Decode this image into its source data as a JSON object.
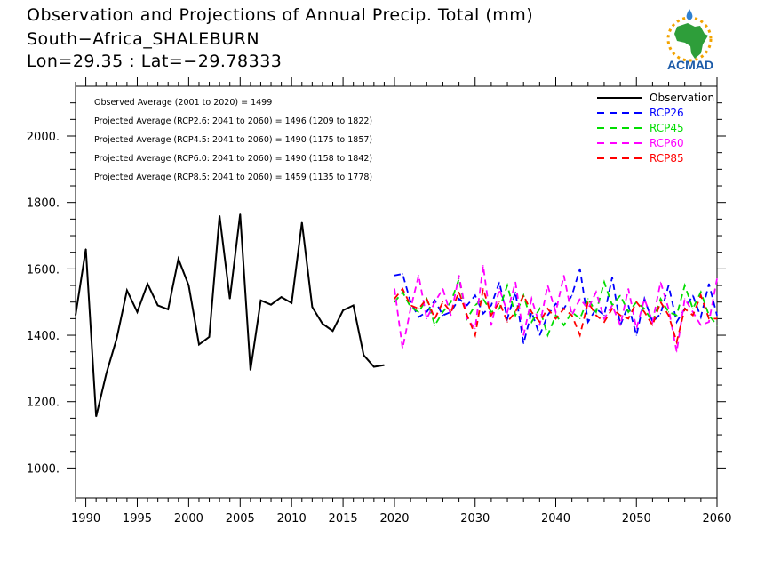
{
  "header": {
    "line1": "Observation and Projections of Annual Precip. Total (mm)",
    "line2": "South−Africa_SHALEBURN",
    "line3": "Lon=29.35 : Lat=−29.78333"
  },
  "logo": {
    "text": "ACMAD",
    "icon": "africa-map-logo"
  },
  "stats": [
    "Observed Average (2001 to 2020) = 1499",
    "Projected Average (RCP2.6: 2041 to 2060) = 1496 (1209 to 1822)",
    "Projected Average (RCP4.5: 2041 to 2060) = 1490 (1175 to 1857)",
    "Projected Average (RCP6.0: 2041 to 2060) = 1490 (1158 to 1842)",
    "Projected Average (RCP8.5: 2041 to 2060) = 1459 (1135 to 1778)"
  ],
  "chart_data": {
    "type": "line",
    "xlim": [
      1989,
      2060
    ],
    "ylim": [
      910,
      2150
    ],
    "x_ticks": [
      {
        "v": 1990,
        "label": "1990"
      },
      {
        "v": 1995,
        "label": "1995"
      },
      {
        "v": 2000,
        "label": "2000"
      },
      {
        "v": 2005,
        "label": "2005"
      },
      {
        "v": 2010,
        "label": "2010"
      },
      {
        "v": 2015,
        "label": "2015"
      },
      {
        "v": 2020,
        "label": "2020"
      },
      {
        "v": 2030,
        "label": "2030"
      },
      {
        "v": 2040,
        "label": "2040"
      },
      {
        "v": 2050,
        "label": "2050"
      },
      {
        "v": 2060,
        "label": "2060"
      }
    ],
    "y_ticks": [
      {
        "v": 1000,
        "label": "1000."
      },
      {
        "v": 1200,
        "label": "1200."
      },
      {
        "v": 1400,
        "label": "1400."
      },
      {
        "v": 1600,
        "label": "1600."
      },
      {
        "v": 1800,
        "label": "1800."
      },
      {
        "v": 2000,
        "label": "2000."
      }
    ],
    "legend_position": "top-right",
    "series": [
      {
        "name": "Observation",
        "color": "#000000",
        "dashed": false,
        "x": [
          1989,
          1990,
          1991,
          1992,
          1993,
          1994,
          1995,
          1996,
          1997,
          1998,
          1999,
          2000,
          2001,
          2002,
          2003,
          2004,
          2005,
          2006,
          2007,
          2008,
          2009,
          2010,
          2011,
          2012,
          2013,
          2014,
          2015,
          2016,
          2017,
          2018,
          2019
        ],
        "y": [
          1460,
          1660,
          1155,
          1285,
          1390,
          1535,
          1470,
          1555,
          1490,
          1478,
          1630,
          1550,
          1372,
          1395,
          1760,
          1510,
          1765,
          1295,
          1505,
          1492,
          1515,
          1497,
          1740,
          1485,
          1435,
          1413,
          1475,
          1490,
          1340,
          1305,
          1310
        ]
      },
      {
        "name": "RCP26",
        "color": "#0000ff",
        "dashed": true,
        "x": [
          2020,
          2021,
          2022,
          2023,
          2024,
          2025,
          2026,
          2027,
          2028,
          2029,
          2030,
          2031,
          2032,
          2033,
          2034,
          2035,
          2036,
          2037,
          2038,
          2039,
          2040,
          2041,
          2042,
          2043,
          2044,
          2045,
          2046,
          2047,
          2048,
          2049,
          2050,
          2051,
          2052,
          2053,
          2054,
          2055,
          2056,
          2057,
          2058,
          2059,
          2060
        ],
        "y": [
          1580,
          1585,
          1500,
          1455,
          1470,
          1505,
          1460,
          1470,
          1510,
          1490,
          1520,
          1465,
          1490,
          1560,
          1450,
          1530,
          1375,
          1470,
          1400,
          1460,
          1495,
          1480,
          1520,
          1600,
          1440,
          1480,
          1460,
          1575,
          1430,
          1490,
          1400,
          1510,
          1440,
          1465,
          1550,
          1440,
          1480,
          1520,
          1455,
          1555,
          1460
        ]
      },
      {
        "name": "RCP45",
        "color": "#00dd00",
        "dashed": true,
        "x": [
          2020,
          2021,
          2022,
          2023,
          2024,
          2025,
          2026,
          2027,
          2028,
          2029,
          2030,
          2031,
          2032,
          2033,
          2034,
          2035,
          2036,
          2037,
          2038,
          2039,
          2040,
          2041,
          2042,
          2043,
          2044,
          2045,
          2046,
          2047,
          2048,
          2049,
          2050,
          2051,
          2052,
          2053,
          2054,
          2055,
          2056,
          2057,
          2058,
          2059,
          2060
        ],
        "y": [
          1500,
          1530,
          1485,
          1470,
          1510,
          1430,
          1470,
          1500,
          1570,
          1450,
          1490,
          1510,
          1470,
          1480,
          1550,
          1460,
          1520,
          1440,
          1480,
          1400,
          1460,
          1430,
          1470,
          1450,
          1510,
          1470,
          1560,
          1490,
          1520,
          1470,
          1500,
          1480,
          1440,
          1510,
          1470,
          1460,
          1550,
          1480,
          1530,
          1460,
          1430
        ]
      },
      {
        "name": "RCP60",
        "color": "#ff00ff",
        "dashed": true,
        "x": [
          2020,
          2021,
          2022,
          2023,
          2024,
          2025,
          2026,
          2027,
          2028,
          2029,
          2030,
          2031,
          2032,
          2033,
          2034,
          2035,
          2036,
          2037,
          2038,
          2039,
          2040,
          2041,
          2042,
          2043,
          2044,
          2045,
          2046,
          2047,
          2048,
          2049,
          2050,
          2051,
          2052,
          2053,
          2054,
          2055,
          2056,
          2057,
          2058,
          2059,
          2060
        ],
        "y": [
          1540,
          1360,
          1480,
          1580,
          1450,
          1500,
          1540,
          1460,
          1580,
          1450,
          1420,
          1610,
          1430,
          1540,
          1470,
          1560,
          1400,
          1510,
          1430,
          1550,
          1470,
          1580,
          1460,
          1510,
          1480,
          1530,
          1450,
          1490,
          1430,
          1540,
          1420,
          1510,
          1440,
          1560,
          1480,
          1350,
          1510,
          1470,
          1430,
          1440,
          1570
        ]
      },
      {
        "name": "RCP85",
        "color": "#ff0000",
        "dashed": true,
        "x": [
          2020,
          2021,
          2022,
          2023,
          2024,
          2025,
          2026,
          2027,
          2028,
          2029,
          2030,
          2031,
          2032,
          2033,
          2034,
          2035,
          2036,
          2037,
          2038,
          2039,
          2040,
          2041,
          2042,
          2043,
          2044,
          2045,
          2046,
          2047,
          2048,
          2049,
          2050,
          2051,
          2052,
          2053,
          2054,
          2055,
          2056,
          2057,
          2058,
          2059,
          2060
        ],
        "y": [
          1510,
          1540,
          1490,
          1480,
          1510,
          1450,
          1500,
          1470,
          1530,
          1460,
          1400,
          1540,
          1460,
          1500,
          1440,
          1470,
          1520,
          1470,
          1440,
          1480,
          1450,
          1480,
          1460,
          1400,
          1500,
          1460,
          1440,
          1480,
          1460,
          1450,
          1500,
          1470,
          1430,
          1500,
          1460,
          1380,
          1480,
          1460,
          1520,
          1450,
          1450
        ]
      }
    ]
  }
}
